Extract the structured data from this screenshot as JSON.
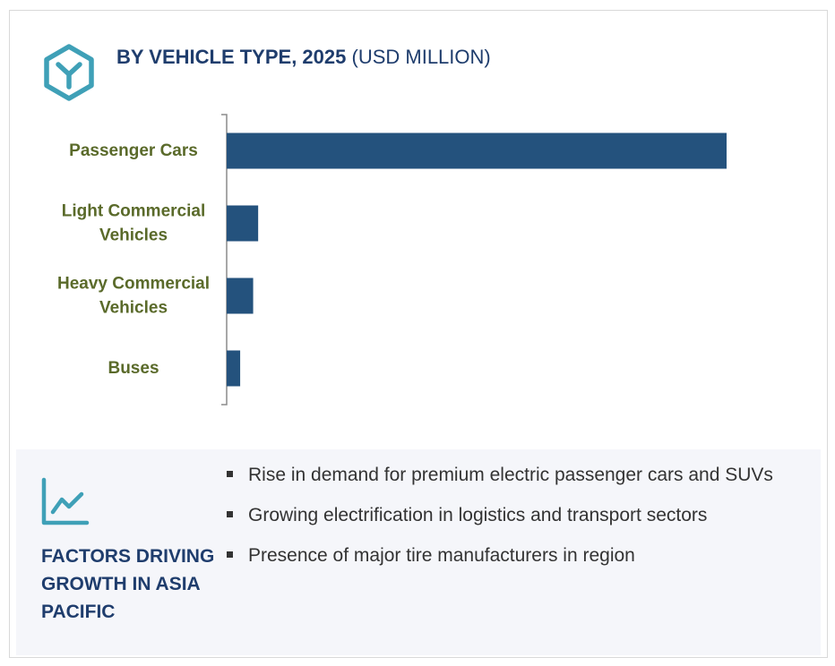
{
  "header": {
    "title_bold": "BY VEHICLE TYPE, 2025",
    "title_rest": " (USD MILLION)",
    "icon": "hexagon-y-icon",
    "icon_color": "#3fa0b7"
  },
  "chart_data": {
    "type": "bar",
    "orientation": "horizontal",
    "title": "BY VEHICLE TYPE, 2025 (USD MILLION)",
    "categories": [
      [
        "Passenger Cars"
      ],
      [
        "Light Commercial",
        "Vehicles"
      ],
      [
        "Heavy Commercial",
        "Vehicles"
      ],
      [
        "Buses"
      ]
    ],
    "values": [
      100,
      6.3,
      5.3,
      2.7
    ],
    "value_note": "relative bar lengths (no axis values printed)",
    "xlim": [
      0,
      100
    ],
    "grid": false,
    "bar_color": "#24527d",
    "label_color": "#5a6a2a"
  },
  "factors": {
    "icon": "line-chart-icon",
    "icon_color": "#3fa0b7",
    "title": "FACTORS DRIVING GROWTH IN ASIA PACIFIC",
    "items": [
      "Rise in demand for premium electric passenger cars and SUVs",
      "Growing electrification in logistics and transport sectors",
      "Presence of major tire manufacturers in region"
    ]
  }
}
